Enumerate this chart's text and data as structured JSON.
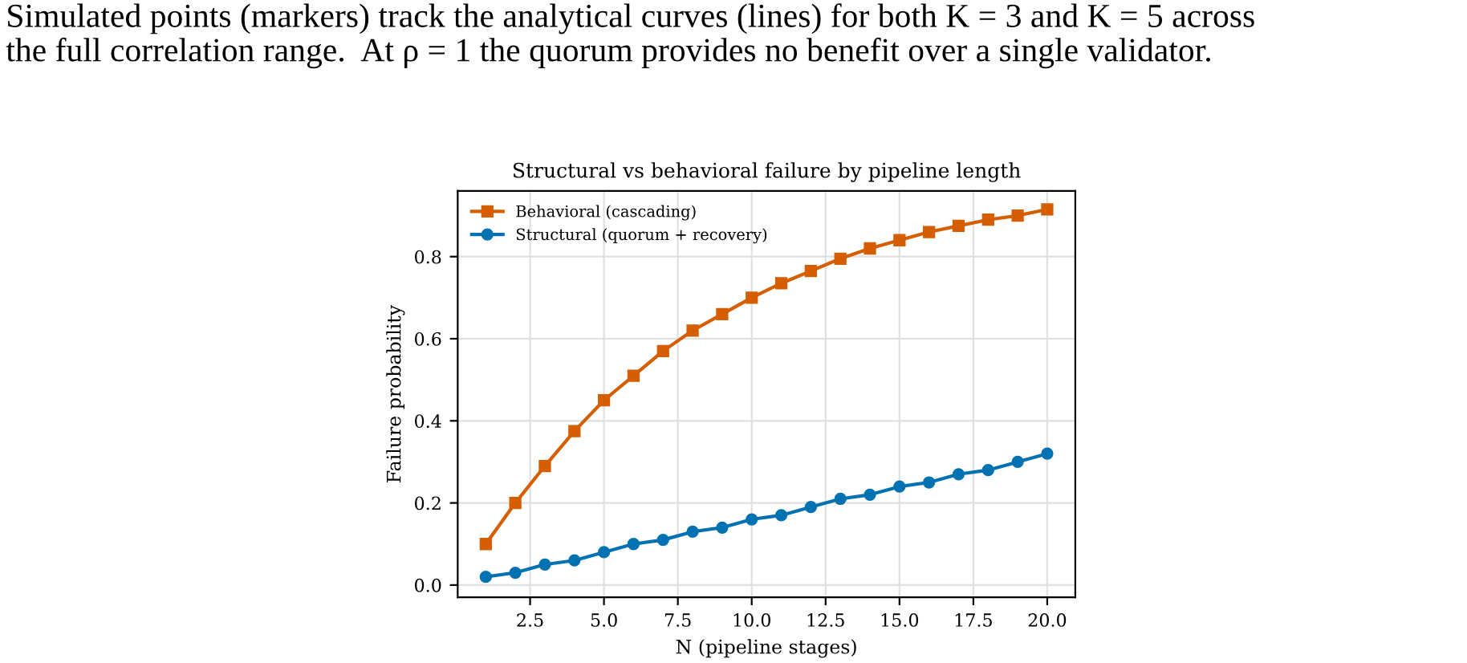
{
  "chart_data": {
    "type": "line",
    "title": "Structural vs behavioral failure by pipeline length",
    "xlabel": "N (pipeline stages)",
    "ylabel": "Failure probability",
    "annotations": [
      "Simulated points (markers) track the analytical curves (lines) for both K = 3 and K = 5 across\nthe full correlation range.  At ρ = 1 the quorum provides no benefit over a single validator."
    ],
    "x": [
      1,
      2,
      3,
      4,
      5,
      6,
      7,
      8,
      9,
      10,
      11,
      12,
      13,
      14,
      15,
      16,
      17,
      18,
      19,
      20
    ],
    "series": [
      {
        "name": "Behavioral (cascading)",
        "color": "#d55e00",
        "marker": "square",
        "values": [
          0.1,
          0.2,
          0.29,
          0.375,
          0.45,
          0.51,
          0.57,
          0.62,
          0.66,
          0.7,
          0.735,
          0.765,
          0.795,
          0.82,
          0.84,
          0.86,
          0.875,
          0.89,
          0.9,
          0.915
        ]
      },
      {
        "name": "Structural (quorum + recovery)",
        "color": "#0072b2",
        "marker": "circle",
        "values": [
          0.02,
          0.03,
          0.05,
          0.06,
          0.08,
          0.1,
          0.11,
          0.13,
          0.14,
          0.16,
          0.17,
          0.19,
          0.21,
          0.22,
          0.24,
          0.25,
          0.27,
          0.28,
          0.3,
          0.32
        ]
      }
    ],
    "xlim": [
      0.05,
      20.95
    ],
    "ylim": [
      -0.03,
      0.96
    ],
    "xticks": [
      {
        "value": 2.5,
        "label": "2.5"
      },
      {
        "value": 5,
        "label": "5.0"
      },
      {
        "value": 7.5,
        "label": "7.5"
      },
      {
        "value": 10,
        "label": "10.0"
      },
      {
        "value": 12.5,
        "label": "12.5"
      },
      {
        "value": 15,
        "label": "15.0"
      },
      {
        "value": 17.5,
        "label": "17.5"
      },
      {
        "value": 20,
        "label": "20.0"
      }
    ],
    "yticks": [
      {
        "value": 0,
        "label": "0.0"
      },
      {
        "value": 0.2,
        "label": "0.2"
      },
      {
        "value": 0.4,
        "label": "0.4"
      },
      {
        "value": 0.6,
        "label": "0.6"
      },
      {
        "value": 0.8,
        "label": "0.8"
      }
    ],
    "grid": true,
    "legend": "top left",
    "line_style": "solid"
  }
}
